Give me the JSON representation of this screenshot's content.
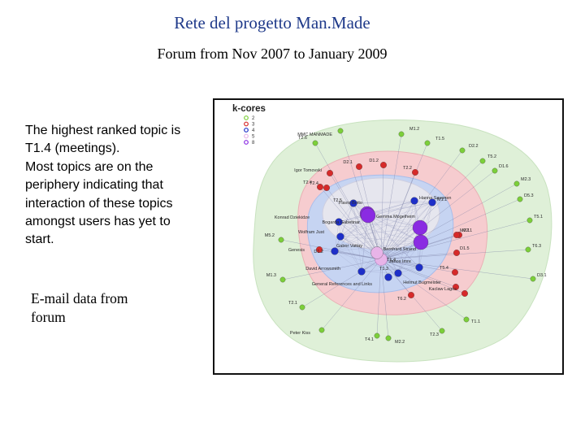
{
  "title": "Rete del progetto Man.Made",
  "subtitle": "Forum  from Nov 2007 to January 2009",
  "description_lines": [
    "The highest ranked topic is",
    "T1.4 (meetings).",
    "Most topics are on the",
    "periphery indicating that",
    "interaction of these topics",
    "amongst users has yet to",
    "start."
  ],
  "source_lines": [
    "E-mail data from",
    "forum"
  ],
  "legend": {
    "title": "k-cores",
    "items": [
      {
        "label": "2",
        "color": "#7ccf3a"
      },
      {
        "label": "3",
        "color": "#d62a2a"
      },
      {
        "label": "4",
        "color": "#1e2fc8"
      },
      {
        "label": "5",
        "color": "#e8b4e8"
      },
      {
        "label": "8",
        "color": "#8a2be2"
      }
    ]
  },
  "center_label": "T1.4",
  "nodes": [
    {
      "label": "MMC MANMADE",
      "core": 2
    },
    {
      "label": "M1.2",
      "core": 2
    },
    {
      "label": "T1.5",
      "core": 2
    },
    {
      "label": "T2.6",
      "core": 2
    },
    {
      "label": "D2.2",
      "core": 2
    },
    {
      "label": "T5.2",
      "core": 2
    },
    {
      "label": "D1.6",
      "core": 2
    },
    {
      "label": "M2.3",
      "core": 2
    },
    {
      "label": "D5.3",
      "core": 2
    },
    {
      "label": "T5.1",
      "core": 2
    },
    {
      "label": "T6.3",
      "core": 2
    },
    {
      "label": "D3.1",
      "core": 2
    },
    {
      "label": "M5.2",
      "core": 2
    },
    {
      "label": "M1.3",
      "core": 2
    },
    {
      "label": "T2.1",
      "core": 2
    },
    {
      "label": "Peter Kiss",
      "core": 2
    },
    {
      "label": "T4.1",
      "core": 2
    },
    {
      "label": "M2.2",
      "core": 2
    },
    {
      "label": "T2.3",
      "core": 2
    },
    {
      "label": "T1.1",
      "core": 2
    },
    {
      "label": "D1.2",
      "core": 3
    },
    {
      "label": "D2.1",
      "core": 3
    },
    {
      "label": "Igor Tomovski",
      "core": 3
    },
    {
      "label": "T2.2",
      "core": 3
    },
    {
      "label": "T2.4",
      "core": 3
    },
    {
      "label": "M2.1",
      "core": 3
    },
    {
      "label": "D1.5",
      "core": 3
    },
    {
      "label": "M2.1",
      "core": 3
    },
    {
      "label": "Genesis",
      "core": 3
    },
    {
      "label": "T6.2",
      "core": 3
    },
    {
      "label": "T2.4",
      "core": 3
    },
    {
      "label": "Hanna Savonen",
      "core": 4
    },
    {
      "label": "M1.1",
      "core": 4
    },
    {
      "label": "T2.5",
      "core": 4
    },
    {
      "label": "Konrad Dziekidze",
      "core": 4
    },
    {
      "label": "Wolfram Just",
      "core": 4
    },
    {
      "label": "D1.2",
      "core": 4
    },
    {
      "label": "David Arrowsmith",
      "core": 4
    },
    {
      "label": "T1.3",
      "core": 4
    },
    {
      "label": "Janos Imre",
      "core": 4
    },
    {
      "label": "T5.4",
      "core": 3
    },
    {
      "label": "Helmut Bugmeister",
      "core": 3
    },
    {
      "label": "Kaclaw Lagos",
      "core": 3
    },
    {
      "label": "General References and Links",
      "core": 4
    },
    {
      "label": "Gabor Vattay",
      "core": 5
    },
    {
      "label": "Flavio Botto",
      "core": 8
    },
    {
      "label": "Bogarda Gabetinar",
      "core": 8
    },
    {
      "label": "Gemma Mogelheim",
      "core": 8
    },
    {
      "label": "Bernhard Strand",
      "core": 8
    }
  ]
}
